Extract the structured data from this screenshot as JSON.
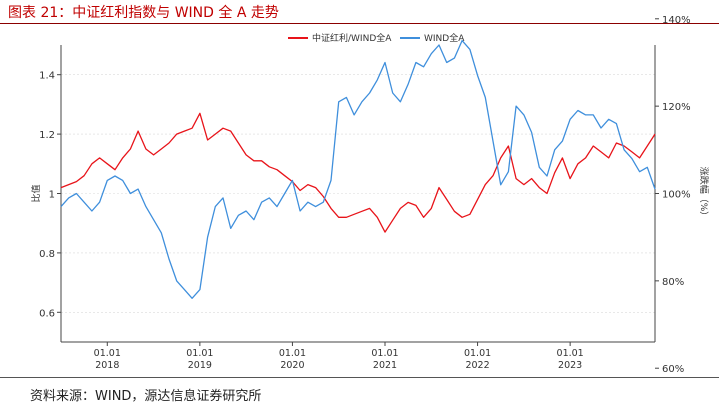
{
  "figure": {
    "title": "图表 21：中证红利指数与 WIND 全 A 走势",
    "source": "资料来源：WIND，源达信息证券研究所"
  },
  "colors": {
    "title": "#c00000",
    "series_red": "#e8141a",
    "series_blue": "#3f8fdc",
    "axis": "#444444",
    "grid": "#d9d9d9"
  },
  "chart_data": {
    "type": "line",
    "legend_position": "top-center",
    "grid": "horizontal",
    "x_range": [
      "2017-07",
      "2023-12"
    ],
    "x_ticks": [
      {
        "date": "2018-01-01",
        "line1": "01.01",
        "line2": "2018"
      },
      {
        "date": "2019-01-01",
        "line1": "01.01",
        "line2": "2019"
      },
      {
        "date": "2020-01-01",
        "line1": "01.01",
        "line2": "2020"
      },
      {
        "date": "2021-01-01",
        "line1": "01.01",
        "line2": "2021"
      },
      {
        "date": "2022-01-01",
        "line1": "01.01",
        "line2": "2022"
      },
      {
        "date": "2023-01-01",
        "line1": "01.01",
        "line2": "2023"
      }
    ],
    "left_axis": {
      "label": "比值",
      "ylim": [
        0.5,
        1.5
      ],
      "ticks": [
        "0.6",
        "0.8",
        "1",
        "1.2",
        "1.4"
      ]
    },
    "right_axis": {
      "label": "涨跌幅（%）",
      "ylim": [
        66,
        134
      ],
      "ticks": [
        "60%",
        "80%",
        "100%",
        "120%",
        "140%"
      ]
    },
    "series": [
      {
        "name": "中证红利/WIND全A",
        "axis": "left",
        "color": "#e8141a",
        "points": [
          [
            "2017-07",
            1.02
          ],
          [
            "2017-08",
            1.03
          ],
          [
            "2017-09",
            1.04
          ],
          [
            "2017-10",
            1.06
          ],
          [
            "2017-11",
            1.1
          ],
          [
            "2017-12",
            1.12
          ],
          [
            "2018-01",
            1.1
          ],
          [
            "2018-02",
            1.08
          ],
          [
            "2018-03",
            1.12
          ],
          [
            "2018-04",
            1.15
          ],
          [
            "2018-05",
            1.21
          ],
          [
            "2018-06",
            1.15
          ],
          [
            "2018-07",
            1.13
          ],
          [
            "2018-08",
            1.15
          ],
          [
            "2018-09",
            1.17
          ],
          [
            "2018-10",
            1.2
          ],
          [
            "2018-11",
            1.21
          ],
          [
            "2018-12",
            1.22
          ],
          [
            "2019-01",
            1.27
          ],
          [
            "2019-02",
            1.18
          ],
          [
            "2019-03",
            1.2
          ],
          [
            "2019-04",
            1.22
          ],
          [
            "2019-05",
            1.21
          ],
          [
            "2019-06",
            1.17
          ],
          [
            "2019-07",
            1.13
          ],
          [
            "2019-08",
            1.11
          ],
          [
            "2019-09",
            1.11
          ],
          [
            "2019-10",
            1.09
          ],
          [
            "2019-11",
            1.08
          ],
          [
            "2019-12",
            1.06
          ],
          [
            "2020-01",
            1.04
          ],
          [
            "2020-02",
            1.01
          ],
          [
            "2020-03",
            1.03
          ],
          [
            "2020-04",
            1.02
          ],
          [
            "2020-05",
            0.99
          ],
          [
            "2020-06",
            0.95
          ],
          [
            "2020-07",
            0.92
          ],
          [
            "2020-08",
            0.92
          ],
          [
            "2020-09",
            0.93
          ],
          [
            "2020-10",
            0.94
          ],
          [
            "2020-11",
            0.95
          ],
          [
            "2020-12",
            0.92
          ],
          [
            "2021-01",
            0.87
          ],
          [
            "2021-02",
            0.91
          ],
          [
            "2021-03",
            0.95
          ],
          [
            "2021-04",
            0.97
          ],
          [
            "2021-05",
            0.96
          ],
          [
            "2021-06",
            0.92
          ],
          [
            "2021-07",
            0.95
          ],
          [
            "2021-08",
            1.02
          ],
          [
            "2021-09",
            0.98
          ],
          [
            "2021-10",
            0.94
          ],
          [
            "2021-11",
            0.92
          ],
          [
            "2021-12",
            0.93
          ],
          [
            "2022-01",
            0.98
          ],
          [
            "2022-02",
            1.03
          ],
          [
            "2022-03",
            1.06
          ],
          [
            "2022-04",
            1.12
          ],
          [
            "2022-05",
            1.16
          ],
          [
            "2022-06",
            1.05
          ],
          [
            "2022-07",
            1.03
          ],
          [
            "2022-08",
            1.05
          ],
          [
            "2022-09",
            1.02
          ],
          [
            "2022-10",
            1.0
          ],
          [
            "2022-11",
            1.07
          ],
          [
            "2022-12",
            1.12
          ],
          [
            "2023-01",
            1.05
          ],
          [
            "2023-02",
            1.1
          ],
          [
            "2023-03",
            1.12
          ],
          [
            "2023-04",
            1.16
          ],
          [
            "2023-05",
            1.14
          ],
          [
            "2023-06",
            1.12
          ],
          [
            "2023-07",
            1.17
          ],
          [
            "2023-08",
            1.16
          ],
          [
            "2023-09",
            1.14
          ],
          [
            "2023-10",
            1.12
          ],
          [
            "2023-11",
            1.16
          ],
          [
            "2023-12",
            1.2
          ]
        ]
      },
      {
        "name": "WIND全A",
        "axis": "right",
        "color": "#3f8fdc",
        "points": [
          [
            "2017-07",
            97
          ],
          [
            "2017-08",
            99
          ],
          [
            "2017-09",
            100
          ],
          [
            "2017-10",
            98
          ],
          [
            "2017-11",
            96
          ],
          [
            "2017-12",
            98
          ],
          [
            "2018-01",
            103
          ],
          [
            "2018-02",
            104
          ],
          [
            "2018-03",
            103
          ],
          [
            "2018-04",
            100
          ],
          [
            "2018-05",
            101
          ],
          [
            "2018-06",
            97
          ],
          [
            "2018-07",
            94
          ],
          [
            "2018-08",
            91
          ],
          [
            "2018-09",
            85
          ],
          [
            "2018-10",
            80
          ],
          [
            "2018-11",
            78
          ],
          [
            "2018-12",
            76
          ],
          [
            "2019-01",
            78
          ],
          [
            "2019-02",
            90
          ],
          [
            "2019-03",
            97
          ],
          [
            "2019-04",
            99
          ],
          [
            "2019-05",
            92
          ],
          [
            "2019-06",
            95
          ],
          [
            "2019-07",
            96
          ],
          [
            "2019-08",
            94
          ],
          [
            "2019-09",
            98
          ],
          [
            "2019-10",
            99
          ],
          [
            "2019-11",
            97
          ],
          [
            "2019-12",
            100
          ],
          [
            "2020-01",
            103
          ],
          [
            "2020-02",
            96
          ],
          [
            "2020-03",
            98
          ],
          [
            "2020-04",
            97
          ],
          [
            "2020-05",
            98
          ],
          [
            "2020-06",
            103
          ],
          [
            "2020-07",
            121
          ],
          [
            "2020-08",
            122
          ],
          [
            "2020-09",
            118
          ],
          [
            "2020-10",
            121
          ],
          [
            "2020-11",
            123
          ],
          [
            "2020-12",
            126
          ],
          [
            "2021-01",
            130
          ],
          [
            "2021-02",
            123
          ],
          [
            "2021-03",
            121
          ],
          [
            "2021-04",
            125
          ],
          [
            "2021-05",
            130
          ],
          [
            "2021-06",
            129
          ],
          [
            "2021-07",
            132
          ],
          [
            "2021-08",
            134
          ],
          [
            "2021-09",
            130
          ],
          [
            "2021-10",
            131
          ],
          [
            "2021-11",
            135
          ],
          [
            "2021-12",
            133
          ],
          [
            "2022-01",
            127
          ],
          [
            "2022-02",
            122
          ],
          [
            "2022-03",
            112
          ],
          [
            "2022-04",
            102
          ],
          [
            "2022-05",
            105
          ],
          [
            "2022-06",
            120
          ],
          [
            "2022-07",
            118
          ],
          [
            "2022-08",
            114
          ],
          [
            "2022-09",
            106
          ],
          [
            "2022-10",
            104
          ],
          [
            "2022-11",
            110
          ],
          [
            "2022-12",
            112
          ],
          [
            "2023-01",
            117
          ],
          [
            "2023-02",
            119
          ],
          [
            "2023-03",
            118
          ],
          [
            "2023-04",
            118
          ],
          [
            "2023-05",
            115
          ],
          [
            "2023-06",
            117
          ],
          [
            "2023-07",
            116
          ],
          [
            "2023-08",
            110
          ],
          [
            "2023-09",
            108
          ],
          [
            "2023-10",
            105
          ],
          [
            "2023-11",
            106
          ],
          [
            "2023-12",
            101
          ]
        ]
      }
    ]
  }
}
